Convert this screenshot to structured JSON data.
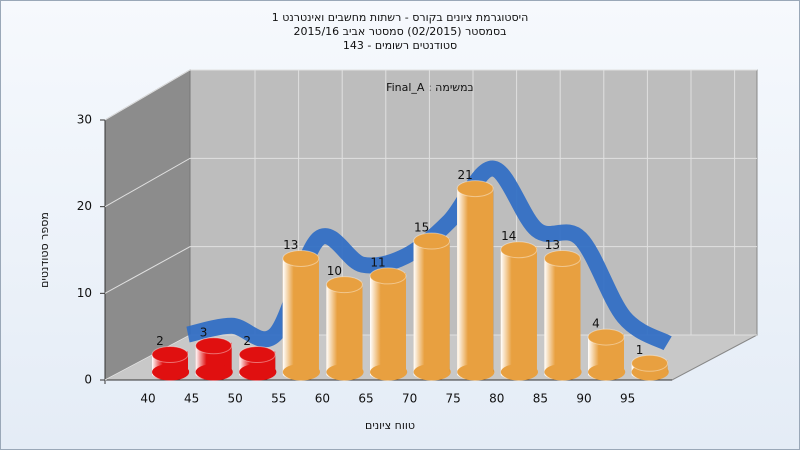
{
  "chart_data": {
    "type": "bar3d",
    "title": "היסטוגרמת ציונים בקורס - רשתות מחשבים ואינטרנט 1",
    "subtitle": [
      "בסמסטר  (02/2015)  סמסטר אביב 2015/16",
      "סטודנטים רשומים - 143"
    ],
    "annotation": "Final_A : במשימה",
    "x_label": "טווח ציונים",
    "y_label": "מספר סטודנטים",
    "categories": [
      "40",
      "45",
      "50",
      "55",
      "60",
      "65",
      "70",
      "75",
      "80",
      "85",
      "90",
      "95"
    ],
    "values": [
      2,
      3,
      2,
      13,
      10,
      11,
      15,
      21,
      14,
      13,
      4,
      1
    ],
    "colors": [
      "#e01010",
      "#e01010",
      "#e01010",
      "#e8a040",
      "#e8a040",
      "#e8a040",
      "#e8a040",
      "#e8a040",
      "#e8a040",
      "#e8a040",
      "#e8a040",
      "#e8a040"
    ],
    "line_color": "#2f6cc4",
    "ylim": [
      0,
      30
    ],
    "yticks": [
      0,
      10,
      20,
      30
    ],
    "grid": true
  }
}
